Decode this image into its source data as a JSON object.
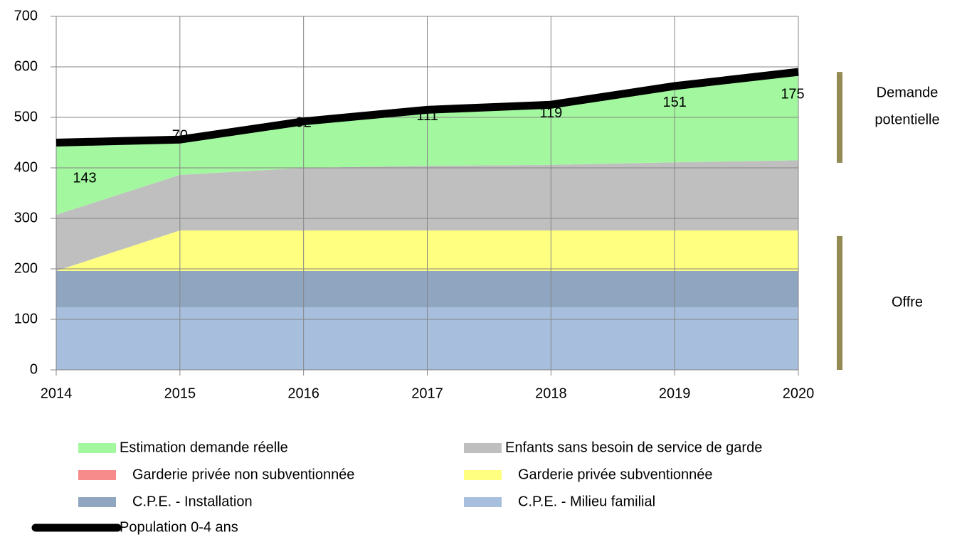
{
  "chart_data": {
    "type": "area",
    "stacked": true,
    "x": [
      2014,
      2015,
      2016,
      2017,
      2018,
      2019,
      2020
    ],
    "xlim": [
      2014,
      2020
    ],
    "xticks": [
      2014,
      2015,
      2016,
      2017,
      2018,
      2019,
      2020
    ],
    "ylim": [
      0,
      700
    ],
    "yticks": [
      0,
      100,
      200,
      300,
      400,
      500,
      600,
      700
    ],
    "grid": true,
    "series": [
      {
        "name": "C.P.E. - Milieu familial",
        "color": "#a7bfdd",
        "values": [
          124,
          124,
          124,
          124,
          124,
          124,
          124
        ]
      },
      {
        "name": "C.P.E. - Installation",
        "color": "#8fa5c0",
        "values": [
          72,
          72,
          72,
          72,
          72,
          72,
          72
        ]
      },
      {
        "name": "Garderie privée non subventionnée",
        "color": "#f78b8b",
        "values": [
          0,
          0,
          0,
          0,
          0,
          0,
          0
        ]
      },
      {
        "name": "Garderie privée subventionnée",
        "color": "#ffff80",
        "values": [
          0,
          80,
          80,
          80,
          80,
          80,
          80
        ]
      },
      {
        "name": "Enfants sans besoin de service de garde",
        "color": "#bfbfbf",
        "values": [
          111,
          110,
          124,
          128,
          130,
          135,
          139
        ]
      },
      {
        "name": "Estimation demande réelle",
        "color": "#a3f89f",
        "values": [
          143,
          70,
          92,
          111,
          119,
          151,
          175
        ],
        "labels": true
      },
      {
        "name": "Population 0-4 ans",
        "color": "#000000",
        "type": "line",
        "values": [
          450,
          456,
          492,
          515,
          525,
          562,
          590
        ]
      }
    ],
    "legend_order": [
      5,
      4,
      2,
      3,
      1,
      0,
      6
    ],
    "annotations": [
      {
        "lines": [
          "Demande",
          "potentielle"
        ],
        "color": "#948a54",
        "range": [
          410,
          590
        ]
      },
      {
        "lines": [
          "Offre"
        ],
        "color": "#948a54",
        "range": [
          0,
          265
        ]
      }
    ]
  }
}
